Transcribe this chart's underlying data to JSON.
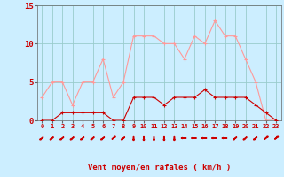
{
  "hours": [
    0,
    1,
    2,
    3,
    4,
    5,
    6,
    7,
    8,
    9,
    10,
    11,
    12,
    13,
    14,
    15,
    16,
    17,
    18,
    19,
    20,
    21,
    22,
    23
  ],
  "wind_mean": [
    0,
    0,
    1,
    1,
    1,
    1,
    1,
    0,
    0,
    3,
    3,
    3,
    2,
    3,
    3,
    3,
    4,
    3,
    3,
    3,
    3,
    2,
    1,
    0
  ],
  "wind_gust": [
    3,
    5,
    5,
    2,
    5,
    5,
    8,
    3,
    5,
    11,
    11,
    11,
    10,
    10,
    8,
    11,
    10,
    13,
    11,
    11,
    8,
    5,
    0,
    0
  ],
  "mean_color": "#cc0000",
  "gust_color": "#ff9999",
  "bg_color": "#cceeff",
  "grid_color": "#99cccc",
  "axis_color": "#cc0000",
  "tick_color": "#cc0000",
  "xlabel": "Vent moyen/en rafales ( km/h )",
  "ylim": [
    0,
    15
  ],
  "yticks": [
    0,
    5,
    10,
    15
  ]
}
